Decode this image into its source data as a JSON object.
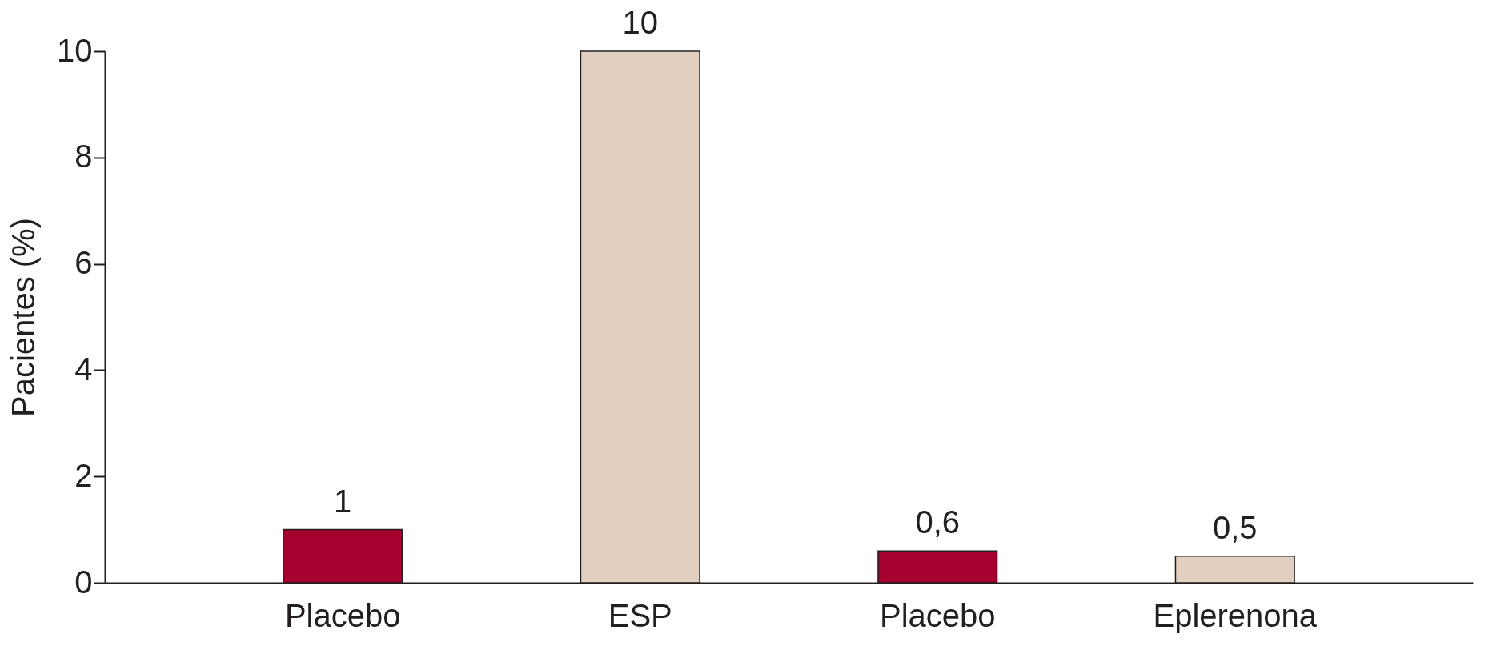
{
  "chart_data": {
    "type": "bar",
    "ylabel": "Pacientes (%)",
    "categories": [
      "Placebo",
      "ESP",
      "Placebo",
      "Eplerenona"
    ],
    "values": [
      1,
      10,
      0.6,
      0.5
    ],
    "value_labels": [
      "1",
      "10",
      "0,6",
      "0,5"
    ],
    "colors": [
      "#a6002f",
      "#e3cfbf",
      "#a6002f",
      "#e3cfbf"
    ],
    "ylim": [
      0,
      10
    ],
    "yticks": [
      0,
      2,
      4,
      6,
      8,
      10
    ],
    "grid": false
  }
}
